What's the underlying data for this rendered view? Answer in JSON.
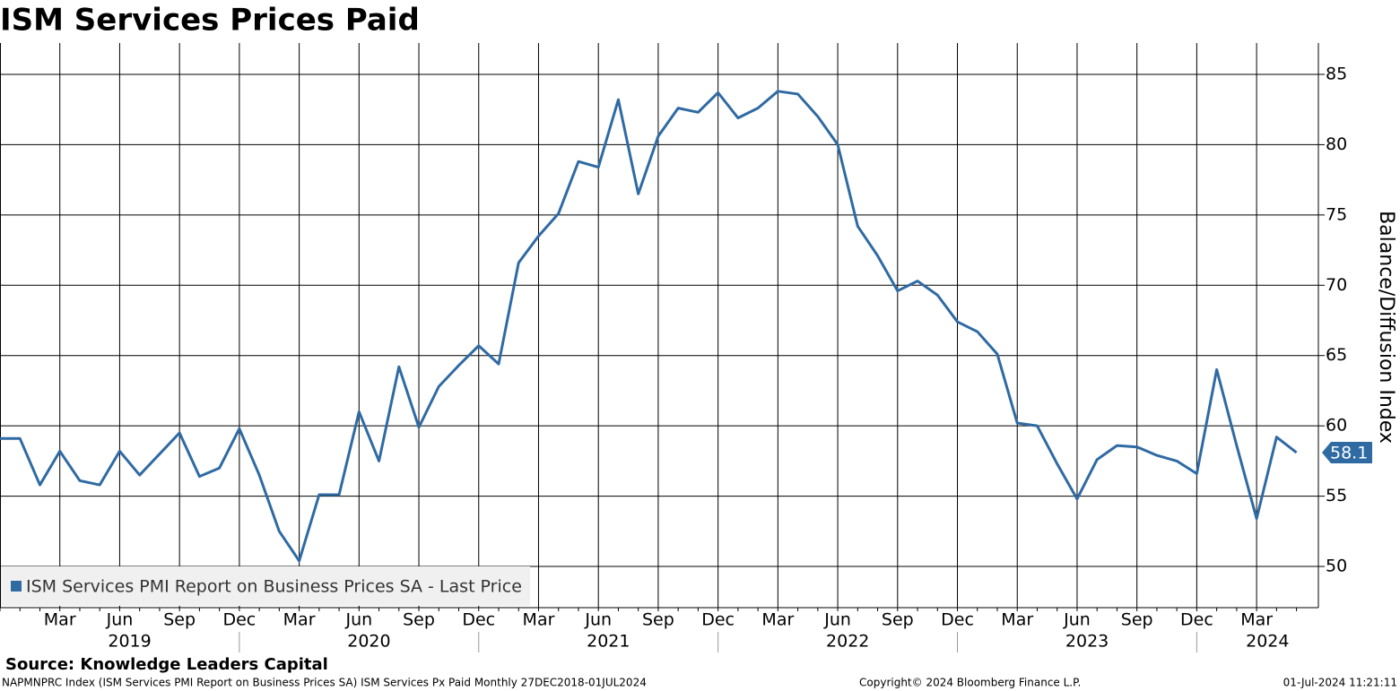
{
  "chart_data": {
    "type": "line",
    "title": "ISM Services Prices Paid",
    "y_axis_label": "Balance/Diffusion Index",
    "x": [
      "2018-12",
      "2019-01",
      "2019-02",
      "2019-03",
      "2019-04",
      "2019-05",
      "2019-06",
      "2019-07",
      "2019-08",
      "2019-09",
      "2019-10",
      "2019-11",
      "2019-12",
      "2020-01",
      "2020-02",
      "2020-03",
      "2020-04",
      "2020-05",
      "2020-06",
      "2020-07",
      "2020-08",
      "2020-09",
      "2020-10",
      "2020-11",
      "2020-12",
      "2021-01",
      "2021-02",
      "2021-03",
      "2021-04",
      "2021-05",
      "2021-06",
      "2021-07",
      "2021-08",
      "2021-09",
      "2021-10",
      "2021-11",
      "2021-12",
      "2022-01",
      "2022-02",
      "2022-03",
      "2022-04",
      "2022-05",
      "2022-06",
      "2022-07",
      "2022-08",
      "2022-09",
      "2022-10",
      "2022-11",
      "2022-12",
      "2023-01",
      "2023-02",
      "2023-03",
      "2023-04",
      "2023-05",
      "2023-06",
      "2023-07",
      "2023-08",
      "2023-09",
      "2023-10",
      "2023-11",
      "2023-12",
      "2024-01",
      "2024-02",
      "2024-03",
      "2024-04",
      "2024-05"
    ],
    "series": [
      {
        "name": "ISM Services PMI Report on Business Prices SA - Last Price",
        "color": "#2f6aa3",
        "values": [
          59.1,
          59.1,
          55.8,
          58.2,
          56.1,
          55.8,
          58.2,
          56.5,
          58.0,
          59.5,
          56.4,
          57.0,
          59.8,
          56.5,
          52.5,
          50.4,
          55.1,
          55.1,
          61.0,
          57.5,
          64.2,
          59.9,
          62.8,
          64.3,
          65.7,
          64.4,
          71.6,
          73.5,
          75.1,
          78.8,
          78.4,
          83.2,
          76.5,
          80.6,
          82.6,
          82.3,
          83.7,
          81.9,
          82.6,
          83.8,
          83.6,
          82.0,
          80.0,
          74.2,
          72.1,
          69.6,
          70.3,
          69.3,
          67.4,
          66.7,
          65.1,
          60.2,
          60.0,
          57.3,
          54.8,
          57.6,
          58.6,
          58.5,
          57.9,
          57.5,
          56.6,
          64.0,
          58.6,
          53.4,
          59.2,
          58.1
        ]
      }
    ],
    "xticks": [
      {
        "value": "2019-03",
        "label": "Mar"
      },
      {
        "value": "2019-06",
        "label": "Jun"
      },
      {
        "value": "2019-09",
        "label": "Sep"
      },
      {
        "value": "2019-12",
        "label": "Dec"
      },
      {
        "value": "2020-03",
        "label": "Mar"
      },
      {
        "value": "2020-06",
        "label": "Jun"
      },
      {
        "value": "2020-09",
        "label": "Sep"
      },
      {
        "value": "2020-12",
        "label": "Dec"
      },
      {
        "value": "2021-03",
        "label": "Mar"
      },
      {
        "value": "2021-06",
        "label": "Jun"
      },
      {
        "value": "2021-09",
        "label": "Sep"
      },
      {
        "value": "2021-12",
        "label": "Dec"
      },
      {
        "value": "2022-03",
        "label": "Mar"
      },
      {
        "value": "2022-06",
        "label": "Jun"
      },
      {
        "value": "2022-09",
        "label": "Sep"
      },
      {
        "value": "2022-12",
        "label": "Dec"
      },
      {
        "value": "2023-03",
        "label": "Mar"
      },
      {
        "value": "2023-06",
        "label": "Jun"
      },
      {
        "value": "2023-09",
        "label": "Sep"
      },
      {
        "value": "2023-12",
        "label": "Dec"
      },
      {
        "value": "2024-03",
        "label": "Mar"
      }
    ],
    "years": [
      "2019",
      "2020",
      "2021",
      "2022",
      "2023",
      "2024"
    ],
    "ylim": [
      47.07,
      87.23
    ],
    "yticks": [
      50,
      55,
      60,
      65,
      70,
      75,
      80,
      85
    ],
    "grid": true,
    "legend": "bottom-left",
    "source": "Source: Knowledge Leaders Capital",
    "footnote": "NAPMNPRC Index (ISM Services PMI Report on Business Prices SA) ISM Services Px Paid  Monthly 27DEC2018-01JUL2024",
    "copyright": "Copyright© 2024 Bloomberg Finance L.P.",
    "timestamp": "01-Jul-2024 11:21:11"
  }
}
